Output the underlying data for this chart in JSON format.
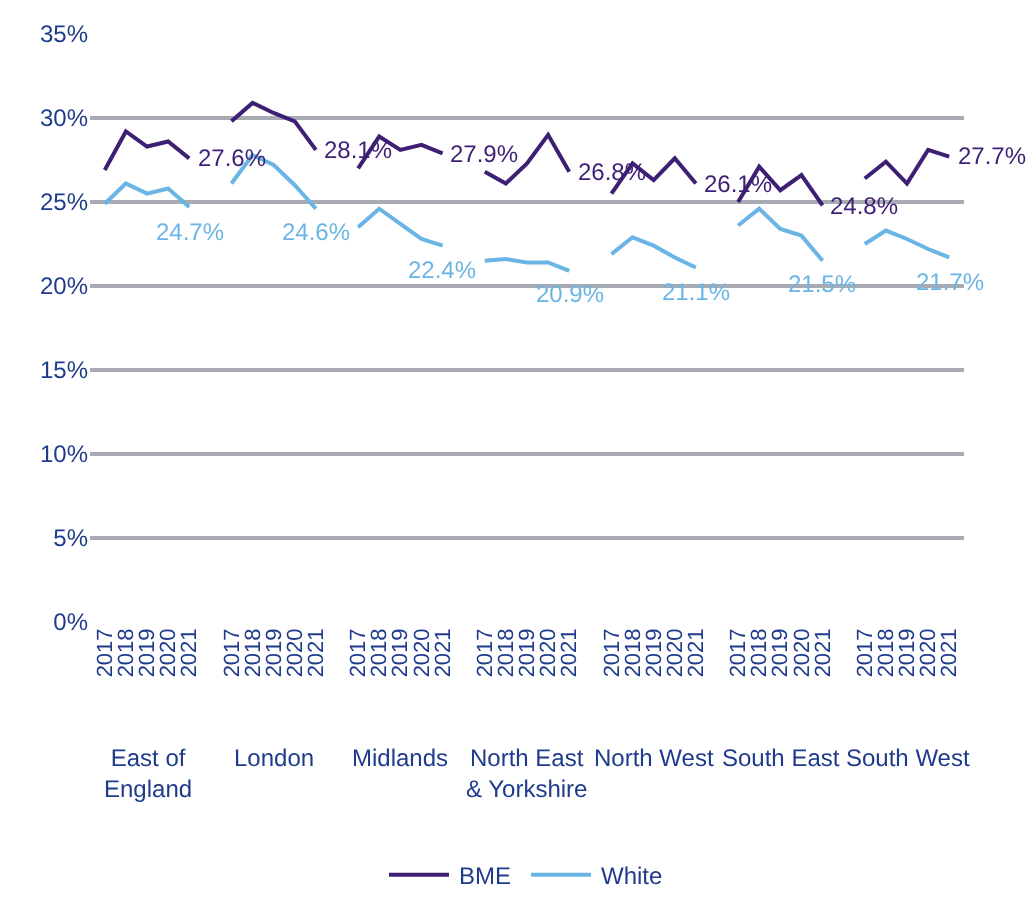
{
  "chart_data": {
    "type": "line",
    "categories": [
      "2017",
      "2018",
      "2019",
      "2020",
      "2021",
      null,
      "2017",
      "2018",
      "2019",
      "2020",
      "2021",
      null,
      "2017",
      "2018",
      "2019",
      "2020",
      "2021",
      null,
      "2017",
      "2018",
      "2019",
      "2020",
      "2021",
      null,
      "2017",
      "2018",
      "2019",
      "2020",
      "2021",
      null,
      "2017",
      "2018",
      "2019",
      "2020",
      "2021",
      null,
      "2017",
      "2018",
      "2019",
      "2020",
      "2021"
    ],
    "series": [
      {
        "name": "BME",
        "color": "#3d1f74",
        "values": [
          26.9,
          29.2,
          28.3,
          28.6,
          27.6,
          null,
          29.8,
          30.9,
          30.3,
          29.8,
          28.1,
          null,
          27.0,
          28.9,
          28.1,
          28.4,
          27.9,
          null,
          26.8,
          26.1,
          27.3,
          29.0,
          26.8,
          null,
          25.5,
          27.3,
          26.3,
          27.6,
          26.1,
          null,
          25.0,
          27.1,
          25.7,
          26.6,
          24.8,
          null,
          26.4,
          27.4,
          26.1,
          28.1,
          27.7
        ],
        "value_labels": [
          null,
          null,
          null,
          null,
          "27.6%",
          null,
          null,
          null,
          null,
          null,
          "28.1%",
          null,
          null,
          null,
          null,
          null,
          "27.9%",
          null,
          null,
          null,
          null,
          null,
          "26.8%",
          null,
          null,
          null,
          null,
          null,
          "26.1%",
          null,
          null,
          null,
          null,
          null,
          "24.8%",
          null,
          null,
          null,
          null,
          null,
          "27.7%"
        ]
      },
      {
        "name": "White",
        "color": "#6bb5e6",
        "values": [
          24.9,
          26.1,
          25.5,
          25.8,
          24.7,
          null,
          26.1,
          27.8,
          27.2,
          26.0,
          24.6,
          null,
          23.5,
          24.6,
          23.7,
          22.8,
          22.4,
          null,
          21.5,
          21.6,
          21.4,
          21.4,
          20.9,
          null,
          21.9,
          22.9,
          22.4,
          21.7,
          21.1,
          null,
          23.6,
          24.6,
          23.4,
          23.0,
          21.5,
          null,
          22.5,
          23.3,
          22.8,
          22.2,
          21.7
        ],
        "value_labels": [
          null,
          null,
          null,
          null,
          "24.7%",
          null,
          null,
          null,
          null,
          null,
          "24.6%",
          null,
          null,
          null,
          null,
          null,
          "22.4%",
          null,
          null,
          null,
          null,
          null,
          "20.9%",
          null,
          null,
          null,
          null,
          null,
          "21.1%",
          null,
          null,
          null,
          null,
          null,
          "21.5%",
          null,
          null,
          null,
          null,
          null,
          "21.7%"
        ]
      }
    ],
    "ylim": [
      0,
      35
    ],
    "yticks": [
      {
        "value": 0,
        "label": "0%"
      },
      {
        "value": 5,
        "label": "5%"
      },
      {
        "value": 10,
        "label": "10%"
      },
      {
        "value": 15,
        "label": "15%"
      },
      {
        "value": 20,
        "label": "20%"
      },
      {
        "value": 25,
        "label": "25%"
      },
      {
        "value": 30,
        "label": "30%"
      },
      {
        "value": 35,
        "label": "35%"
      }
    ],
    "annotations": [
      "East of\nEngland",
      "London",
      "Midlands",
      "North East\n& Yorkshire",
      "North West",
      "South East",
      "South West"
    ],
    "grid": "y",
    "legend": "bottom",
    "marker": "none",
    "line_style": "solid"
  }
}
